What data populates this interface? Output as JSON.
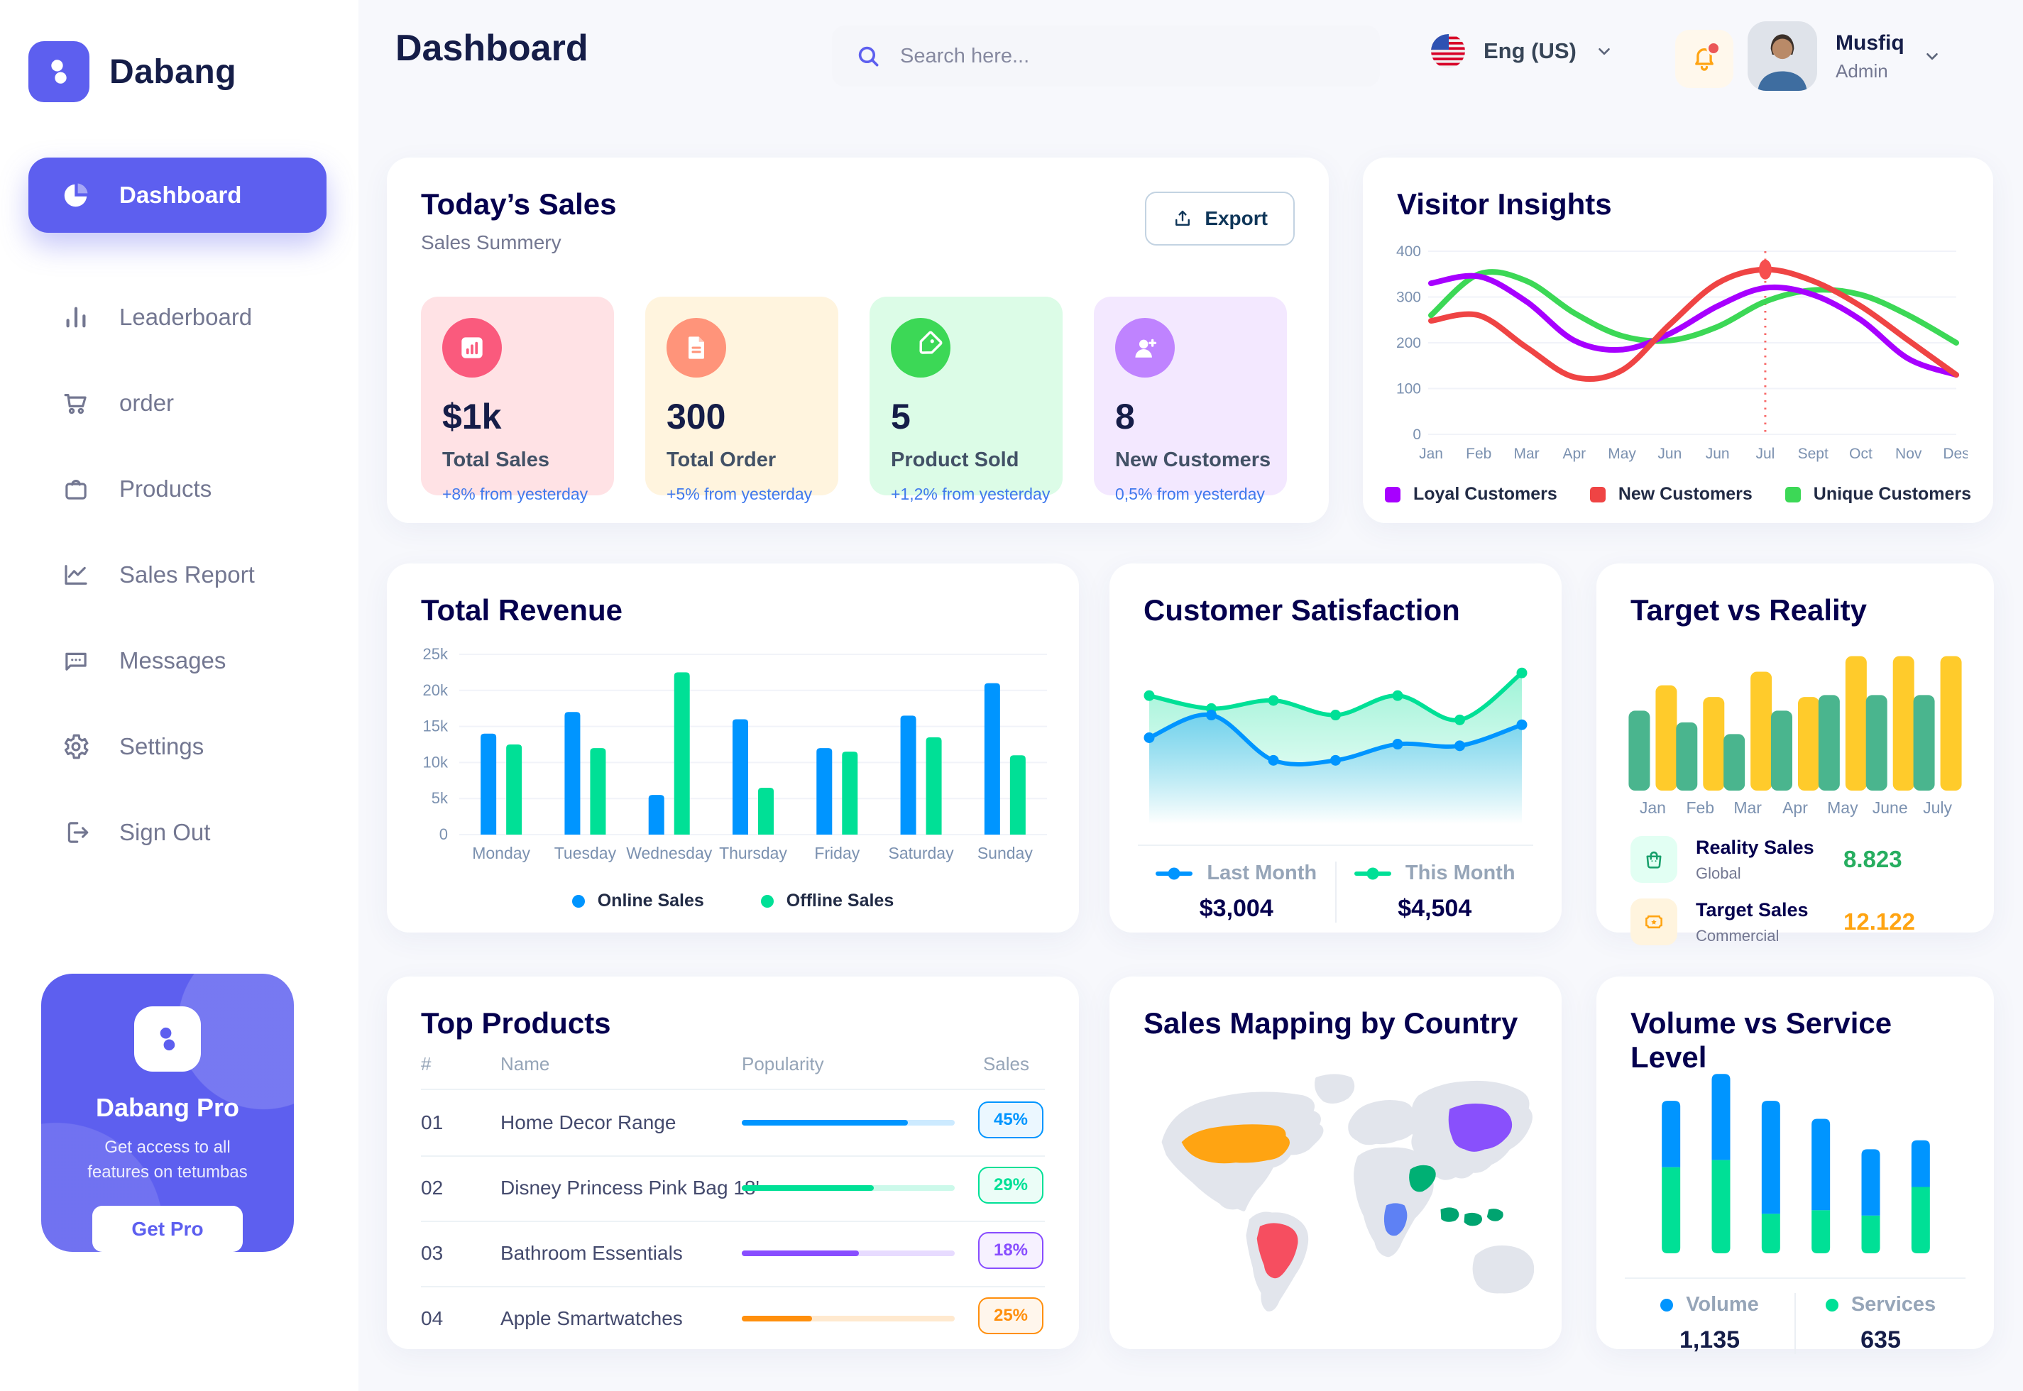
{
  "brand": {
    "name": "Dabang"
  },
  "sidebar": {
    "items": [
      {
        "label": "Dashboard",
        "icon": "pie-chart",
        "active": true
      },
      {
        "label": "Leaderboard",
        "icon": "leaderboard",
        "active": false
      },
      {
        "label": "order",
        "icon": "cart",
        "active": false
      },
      {
        "label": "Products",
        "icon": "bag",
        "active": false
      },
      {
        "label": "Sales Report",
        "icon": "line-chart",
        "active": false
      },
      {
        "label": "Messages",
        "icon": "message",
        "active": false
      },
      {
        "label": "Settings",
        "icon": "gear",
        "active": false
      },
      {
        "label": "Sign Out",
        "icon": "sign-out",
        "active": false
      }
    ],
    "pro": {
      "title": "Dabang Pro",
      "desc": "Get access to all features on tetumbas",
      "cta": "Get Pro"
    }
  },
  "header": {
    "title": "Dashboard",
    "search_placeholder": "Search here...",
    "language": "Eng (US)",
    "user": {
      "name": "Musfiq",
      "role": "Admin"
    }
  },
  "today_sales": {
    "title": "Today’s Sales",
    "subtitle": "Sales Summery",
    "export_label": "Export",
    "cards": [
      {
        "value": "$1k",
        "label": "Total Sales",
        "delta": "+8% from yesterday",
        "bg": "#FFE2E5",
        "accent": "#FA5A7D",
        "icon": "stat"
      },
      {
        "value": "300",
        "label": "Total Order",
        "delta": "+5% from yesterday",
        "bg": "#FFF4DE",
        "accent": "#FF947A",
        "icon": "doc"
      },
      {
        "value": "5",
        "label": "Product Sold",
        "delta": "+1,2% from yesterday",
        "bg": "#DCFCE7",
        "accent": "#3CD856",
        "icon": "tag"
      },
      {
        "value": "8",
        "label": "New Customers",
        "delta": "0,5% from yesterday",
        "bg": "#F3E8FF",
        "accent": "#BF83FF",
        "icon": "user-plus"
      }
    ]
  },
  "visitor_insights": {
    "title": "Visitor Insights"
  },
  "total_revenue": {
    "title": "Total Revenue"
  },
  "customer_satisfaction": {
    "title": "Customer Satisfaction",
    "legend": [
      {
        "label": "Last Month",
        "value": "$3,004",
        "color": "#0095FF"
      },
      {
        "label": "This Month",
        "value": "$4,504",
        "color": "#00E096"
      }
    ]
  },
  "target_reality": {
    "title": "Target vs Reality",
    "rows": [
      {
        "label": "Reality Sales",
        "sub": "Global",
        "value": "8.823",
        "color": "#27AE60",
        "tile": "#E2FFF3",
        "icon": "bag-green"
      },
      {
        "label": "Target Sales",
        "sub": "Commercial",
        "value": "12.122",
        "color": "#FFA412",
        "tile": "#FFF4DE",
        "icon": "ticket-orange"
      }
    ]
  },
  "top_products": {
    "title": "Top Products",
    "columns": [
      "#",
      "Name",
      "Popularity",
      "Sales"
    ],
    "rows": [
      {
        "num": "01",
        "name": "Home Decor Range",
        "popularity": 78,
        "sales": "45%",
        "color": "#0095FF"
      },
      {
        "num": "02",
        "name": "Disney Princess Pink Bag 18'",
        "popularity": 62,
        "sales": "29%",
        "color": "#00E096"
      },
      {
        "num": "03",
        "name": "Bathroom Essentials",
        "popularity": 55,
        "sales": "18%",
        "color": "#884DFF"
      },
      {
        "num": "04",
        "name": "Apple Smartwatches",
        "popularity": 33,
        "sales": "25%",
        "color": "#FF8F0D"
      }
    ]
  },
  "sales_mapping": {
    "title": "Sales Mapping by Country",
    "countries": [
      {
        "name": "United States",
        "color": "#FFA412"
      },
      {
        "name": "Brazil",
        "color": "#F64E60"
      },
      {
        "name": "DR Congo",
        "color": "#5E81F4"
      },
      {
        "name": "Saudi Arabia",
        "color": "#00B074"
      },
      {
        "name": "China",
        "color": "#8950FC"
      },
      {
        "name": "Indonesia",
        "color": "#00A470"
      }
    ]
  },
  "volume_service": {
    "title": "Volume vs Service Level",
    "legend": [
      {
        "label": "Volume",
        "value": "1,135",
        "color": "#0095FF"
      },
      {
        "label": "Services",
        "value": "635",
        "color": "#00E096"
      }
    ]
  },
  "chart_data": [
    {
      "id": "visitor_insights",
      "type": "line",
      "title": "Visitor Insights",
      "x": [
        "Jan",
        "Feb",
        "Mar",
        "Apr",
        "May",
        "Jun",
        "Jun",
        "Jul",
        "Sept",
        "Oct",
        "Nov",
        "Des"
      ],
      "ylim": [
        0,
        400
      ],
      "yticks": [
        0,
        100,
        200,
        300,
        400
      ],
      "grid": true,
      "legend_position": "bottom",
      "series": [
        {
          "name": "Unique Customers",
          "color": "#3CD856",
          "values": [
            260,
            350,
            335,
            265,
            215,
            205,
            235,
            290,
            315,
            305,
            260,
            200
          ]
        },
        {
          "name": "Loyal Customers",
          "color": "#A700FF",
          "values": [
            330,
            345,
            290,
            205,
            185,
            220,
            280,
            320,
            305,
            250,
            165,
            130
          ]
        },
        {
          "name": "New Customers",
          "color": "#EF4444",
          "values": [
            248,
            260,
            190,
            125,
            140,
            240,
            330,
            360,
            335,
            280,
            205,
            130
          ]
        }
      ],
      "legend_order": [
        "Loyal Customers",
        "New Customers",
        "Unique Customers"
      ],
      "annotation": {
        "type": "vline-dot",
        "x_index": 7,
        "x_label": "Jul",
        "series": "New Customers",
        "value": 360,
        "color": "#F64E4E"
      }
    },
    {
      "id": "total_revenue",
      "type": "bar",
      "title": "Total Revenue",
      "categories": [
        "Monday",
        "Tuesday",
        "Wednesday",
        "Thursday",
        "Friday",
        "Saturday",
        "Sunday"
      ],
      "ylim": [
        0,
        25
      ],
      "yticks": [
        0,
        5,
        10,
        15,
        20,
        25
      ],
      "ytick_labels": [
        "0",
        "5k",
        "10k",
        "15k",
        "20k",
        "25k"
      ],
      "grid": true,
      "legend_position": "bottom",
      "series": [
        {
          "name": "Online Sales",
          "color": "#0095FF",
          "values": [
            14,
            17,
            5.5,
            16,
            12,
            16.5,
            21
          ]
        },
        {
          "name": "Offline Sales",
          "color": "#00E096",
          "values": [
            12.5,
            12,
            22.5,
            6.5,
            11.5,
            13.5,
            11
          ]
        }
      ]
    },
    {
      "id": "customer_satisfaction",
      "type": "area",
      "title": "Customer Satisfaction",
      "x_points": 7,
      "ylim": [
        0,
        100
      ],
      "axes": "hidden",
      "series": [
        {
          "name": "This Month",
          "color": "#00E096",
          "total": "$4,504",
          "values": [
            78,
            70,
            75,
            66,
            78,
            63,
            92
          ]
        },
        {
          "name": "Last Month",
          "color": "#0095FF",
          "total": "$3,004",
          "values": [
            52,
            66,
            38,
            38,
            48,
            47,
            60
          ]
        }
      ]
    },
    {
      "id": "target_vs_reality",
      "type": "bar",
      "title": "Target vs Reality",
      "categories": [
        "Jan",
        "Feb",
        "Mar",
        "Apr",
        "May",
        "June",
        "July"
      ],
      "ylim": [
        0,
        15
      ],
      "grid": false,
      "bar_style": "rounded",
      "series": [
        {
          "name": "Reality Sales",
          "color": "#4AB58E",
          "values": [
            8.2,
            7,
            5.8,
            8.2,
            9.8,
            9.8,
            9.8
          ]
        },
        {
          "name": "Target Sales",
          "color": "#FFCB2B",
          "values": [
            10.8,
            9.6,
            12.2,
            9.6,
            13.8,
            13.8,
            13.8
          ]
        }
      ],
      "totals": {
        "Reality Sales": "8.823",
        "Target Sales": "12.122"
      }
    },
    {
      "id": "volume_vs_service",
      "type": "stacked-bar",
      "title": "Volume vs Service Level",
      "categories": [
        "1",
        "2",
        "3",
        "4",
        "5",
        "6"
      ],
      "ylim": [
        0,
        110
      ],
      "series": [
        {
          "name": "Services",
          "color": "#00E096",
          "total": "635",
          "values": [
            48,
            52,
            22,
            24,
            21,
            37
          ]
        },
        {
          "name": "Volume",
          "color": "#0095FF",
          "total": "1,135",
          "values": [
            37,
            48,
            63,
            51,
            37,
            26
          ]
        }
      ]
    }
  ]
}
